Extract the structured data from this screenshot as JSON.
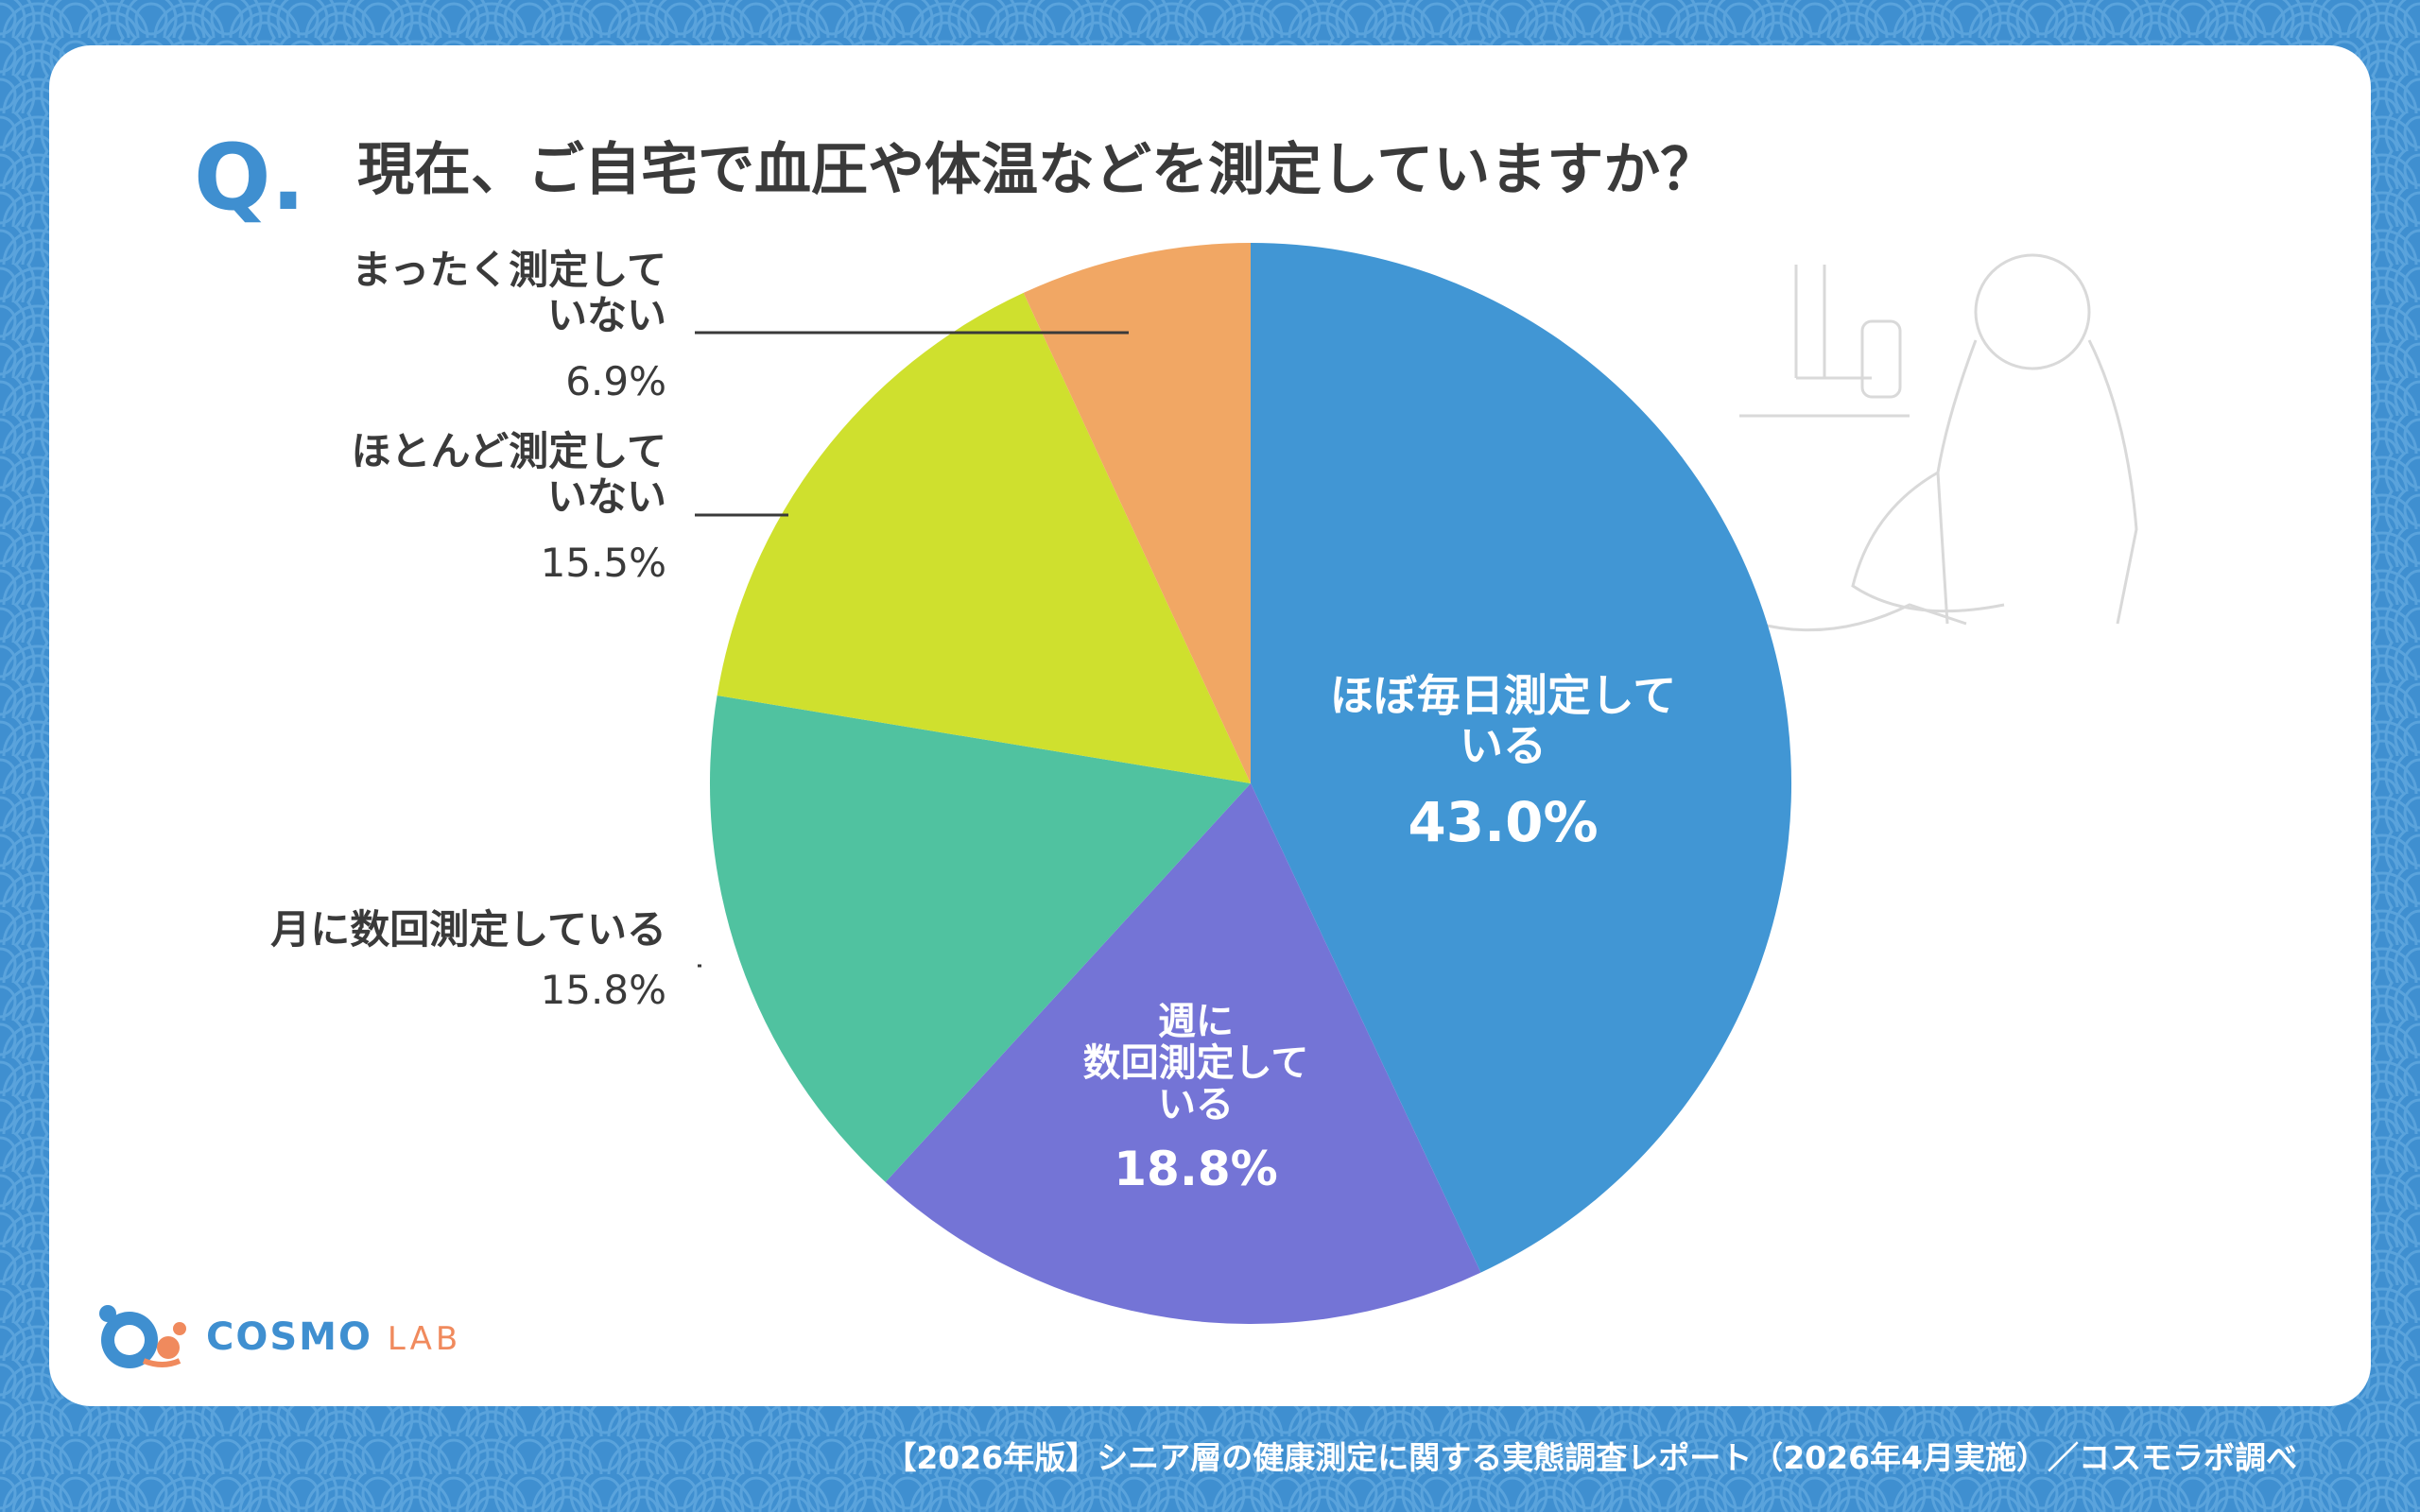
{
  "header": {
    "q_mark": "Q.",
    "title": "現在、ご自宅で血圧や体温などを測定していますか？"
  },
  "chart_data": {
    "type": "pie",
    "start_angle": "12 o'clock",
    "direction": "clockwise",
    "slices": [
      {
        "label_lines": [
          "ほぼ毎日測定して",
          "いる"
        ],
        "value": 43.0,
        "value_label": "43.0%",
        "color": "#4196d4",
        "label_placement": "inside"
      },
      {
        "label_lines": [
          "週に",
          "数回測定して",
          "いる"
        ],
        "value": 18.8,
        "value_label": "18.8%",
        "color": "#7474d6",
        "label_placement": "inside"
      },
      {
        "label_lines": [
          "月に数回測定している"
        ],
        "value": 15.8,
        "value_label": "15.8%",
        "color": "#50c2a0",
        "label_placement": "outside"
      },
      {
        "label_lines": [
          "ほとんど測定して",
          "いない"
        ],
        "value": 15.5,
        "value_label": "15.5%",
        "color": "#cfe02e",
        "label_placement": "outside"
      },
      {
        "label_lines": [
          "まったく測定して",
          "いない"
        ],
        "value": 6.9,
        "value_label": "6.9%",
        "color": "#f1a764",
        "label_placement": "outside"
      }
    ]
  },
  "branding": {
    "logo_main": "COSMO",
    "logo_sub": "LAB"
  },
  "footer": {
    "source": "【2026年版】シニア層の健康測定に関する実態調査レポート（2026年4月実施）／コスモラボ調べ"
  },
  "colors": {
    "background": "#3f8fd0",
    "card": "#ffffff",
    "title_text": "#3a3a3a",
    "accent": "#3f8fd0"
  }
}
